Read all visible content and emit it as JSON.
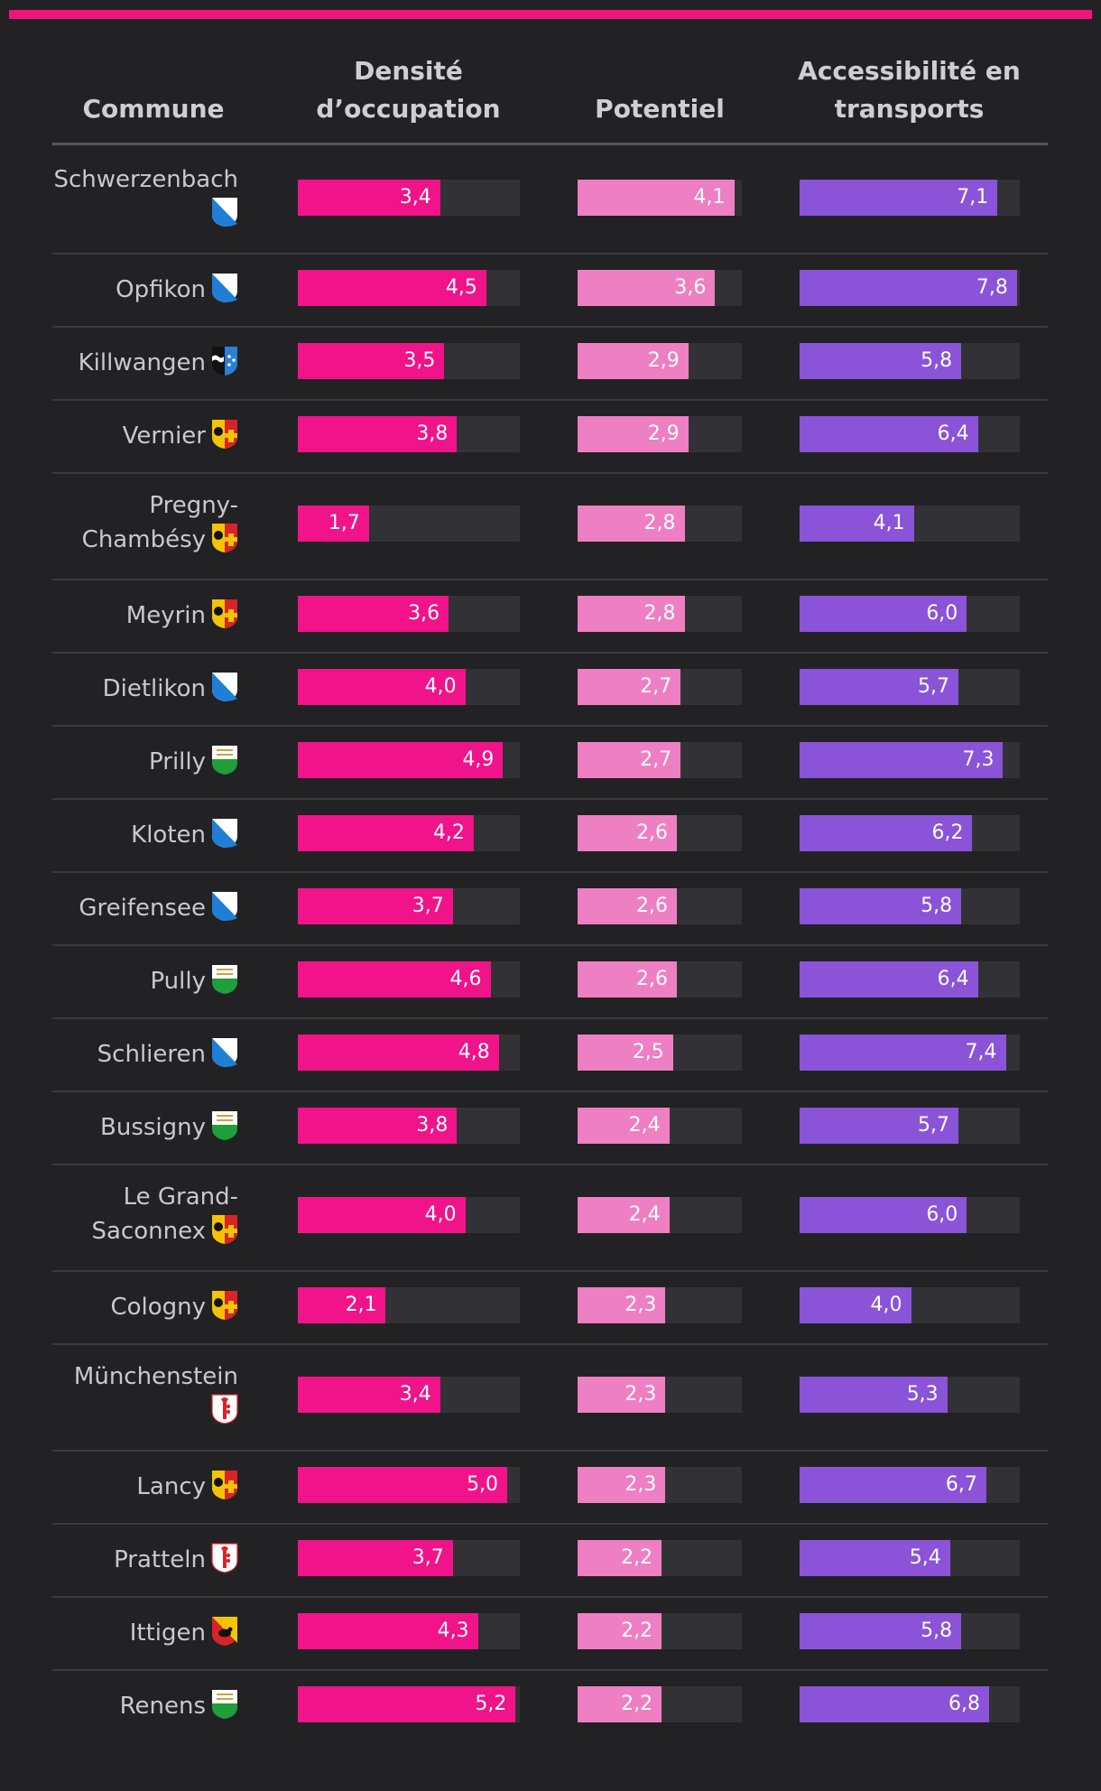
{
  "chart_data": {
    "type": "bar",
    "columns": [
      "Commune",
      "Densité d’occupation",
      "Potentiel",
      "Accessibilité en transports"
    ],
    "colors": {
      "densite": "#f0138a",
      "potentiel": "#ee7fc3",
      "accessibilite": "#8b53d8",
      "track": "#323236",
      "accent": "#f0147c"
    },
    "scale_max": {
      "densite": 5.3,
      "potentiel": 4.3,
      "accessibilite": 7.9
    },
    "rows": [
      {
        "commune": "Schwerzenbach",
        "lines": [
          "Schwerzenbach",
          ""
        ],
        "icon": "zurich-flag-icon",
        "densite": "3,4",
        "potentiel": "4,1",
        "accessibilite": "7,1"
      },
      {
        "commune": "Opfikon",
        "lines": [
          "Opfikon"
        ],
        "icon": "zurich-flag-icon",
        "densite": "4,5",
        "potentiel": "3,6",
        "accessibilite": "7,8"
      },
      {
        "commune": "Killwangen",
        "lines": [
          "Killwangen"
        ],
        "icon": "aargau-flag-icon",
        "densite": "3,5",
        "potentiel": "2,9",
        "accessibilite": "5,8"
      },
      {
        "commune": "Vernier",
        "lines": [
          "Vernier"
        ],
        "icon": "geneva-flag-icon",
        "densite": "3,8",
        "potentiel": "2,9",
        "accessibilite": "6,4"
      },
      {
        "commune": "Pregny-Chambésy",
        "lines": [
          "Pregny-",
          "Chambésy"
        ],
        "icon": "geneva-flag-icon",
        "densite": "1,7",
        "potentiel": "2,8",
        "accessibilite": "4,1"
      },
      {
        "commune": "Meyrin",
        "lines": [
          "Meyrin"
        ],
        "icon": "geneva-flag-icon",
        "densite": "3,6",
        "potentiel": "2,8",
        "accessibilite": "6,0"
      },
      {
        "commune": "Dietlikon",
        "lines": [
          "Dietlikon"
        ],
        "icon": "zurich-flag-icon",
        "densite": "4,0",
        "potentiel": "2,7",
        "accessibilite": "5,7"
      },
      {
        "commune": "Prilly",
        "lines": [
          "Prilly"
        ],
        "icon": "vaud-flag-icon",
        "densite": "4,9",
        "potentiel": "2,7",
        "accessibilite": "7,3"
      },
      {
        "commune": "Kloten",
        "lines": [
          "Kloten"
        ],
        "icon": "zurich-flag-icon",
        "densite": "4,2",
        "potentiel": "2,6",
        "accessibilite": "6,2"
      },
      {
        "commune": "Greifensee",
        "lines": [
          "Greifensee"
        ],
        "icon": "zurich-flag-icon",
        "densite": "3,7",
        "potentiel": "2,6",
        "accessibilite": "5,8"
      },
      {
        "commune": "Pully",
        "lines": [
          "Pully"
        ],
        "icon": "vaud-flag-icon",
        "densite": "4,6",
        "potentiel": "2,6",
        "accessibilite": "6,4"
      },
      {
        "commune": "Schlieren",
        "lines": [
          "Schlieren"
        ],
        "icon": "zurich-flag-icon",
        "densite": "4,8",
        "potentiel": "2,5",
        "accessibilite": "7,4"
      },
      {
        "commune": "Bussigny",
        "lines": [
          "Bussigny"
        ],
        "icon": "vaud-flag-icon",
        "densite": "3,8",
        "potentiel": "2,4",
        "accessibilite": "5,7"
      },
      {
        "commune": "Le Grand-Saconnex",
        "lines": [
          "Le Grand-",
          "Saconnex"
        ],
        "icon": "geneva-flag-icon",
        "densite": "4,0",
        "potentiel": "2,4",
        "accessibilite": "6,0"
      },
      {
        "commune": "Cologny",
        "lines": [
          "Cologny"
        ],
        "icon": "geneva-flag-icon",
        "densite": "2,1",
        "potentiel": "2,3",
        "accessibilite": "4,0"
      },
      {
        "commune": "Münchenstein",
        "lines": [
          "Münchenstein",
          ""
        ],
        "icon": "basel-landschaft-flag-icon",
        "densite": "3,4",
        "potentiel": "2,3",
        "accessibilite": "5,3"
      },
      {
        "commune": "Lancy",
        "lines": [
          "Lancy"
        ],
        "icon": "geneva-flag-icon",
        "densite": "5,0",
        "potentiel": "2,3",
        "accessibilite": "6,7"
      },
      {
        "commune": "Pratteln",
        "lines": [
          "Pratteln"
        ],
        "icon": "basel-landschaft-flag-icon",
        "densite": "3,7",
        "potentiel": "2,2",
        "accessibilite": "5,4"
      },
      {
        "commune": "Ittigen",
        "lines": [
          "Ittigen"
        ],
        "icon": "bern-flag-icon",
        "densite": "4,3",
        "potentiel": "2,2",
        "accessibilite": "5,8"
      },
      {
        "commune": "Renens",
        "lines": [
          "Renens"
        ],
        "icon": "vaud-flag-icon",
        "densite": "5,2",
        "potentiel": "2,2",
        "accessibilite": "6,8"
      }
    ]
  }
}
